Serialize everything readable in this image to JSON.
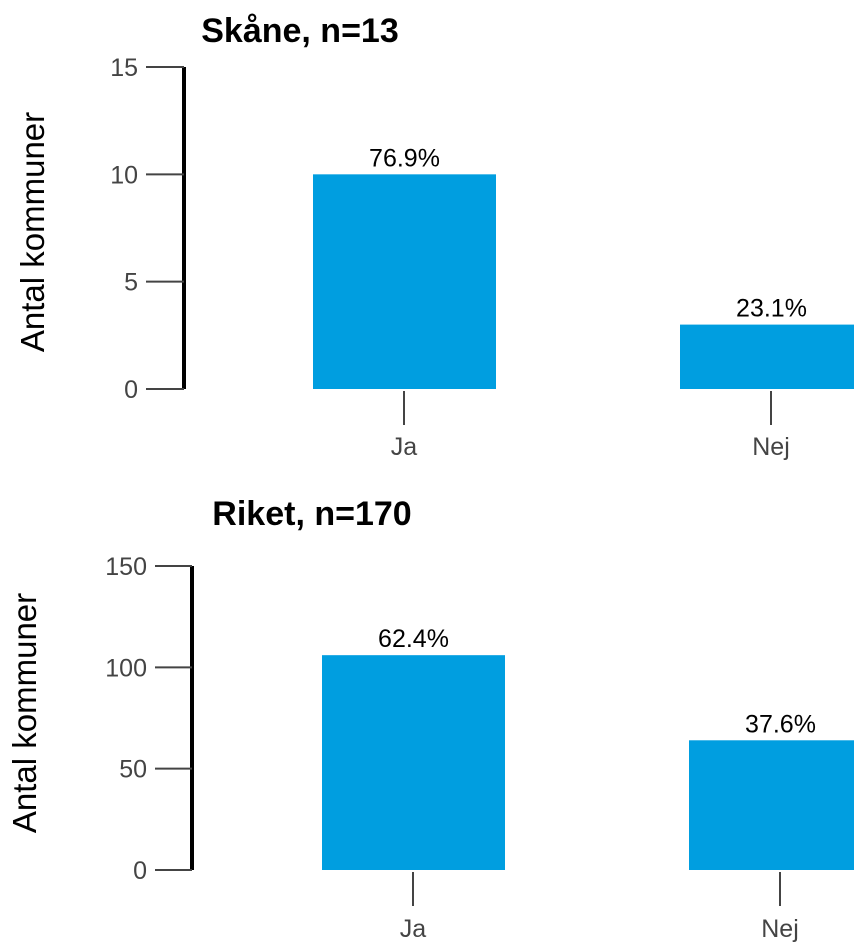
{
  "chart_data": [
    {
      "type": "bar",
      "title": "Skåne, n=13",
      "ylabel": "Antal kommuner",
      "xlabel": "",
      "categories": [
        "Ja",
        "Nej"
      ],
      "values": [
        10,
        3
      ],
      "data_labels": [
        "76.9%",
        "23.1%"
      ],
      "ylim": [
        0,
        15
      ],
      "yticks": [
        0,
        5,
        10,
        15
      ],
      "bar_color": "#009EE0",
      "grid": false,
      "legend": "none"
    },
    {
      "type": "bar",
      "title": "Riket, n=170",
      "ylabel": "Antal kommuner",
      "xlabel": "",
      "categories": [
        "Ja",
        "Nej"
      ],
      "values": [
        106,
        64
      ],
      "data_labels": [
        "62.4%",
        "37.6%"
      ],
      "ylim": [
        0,
        150
      ],
      "yticks": [
        0,
        50,
        100,
        150
      ],
      "bar_color": "#009EE0",
      "grid": false,
      "legend": "none"
    }
  ]
}
